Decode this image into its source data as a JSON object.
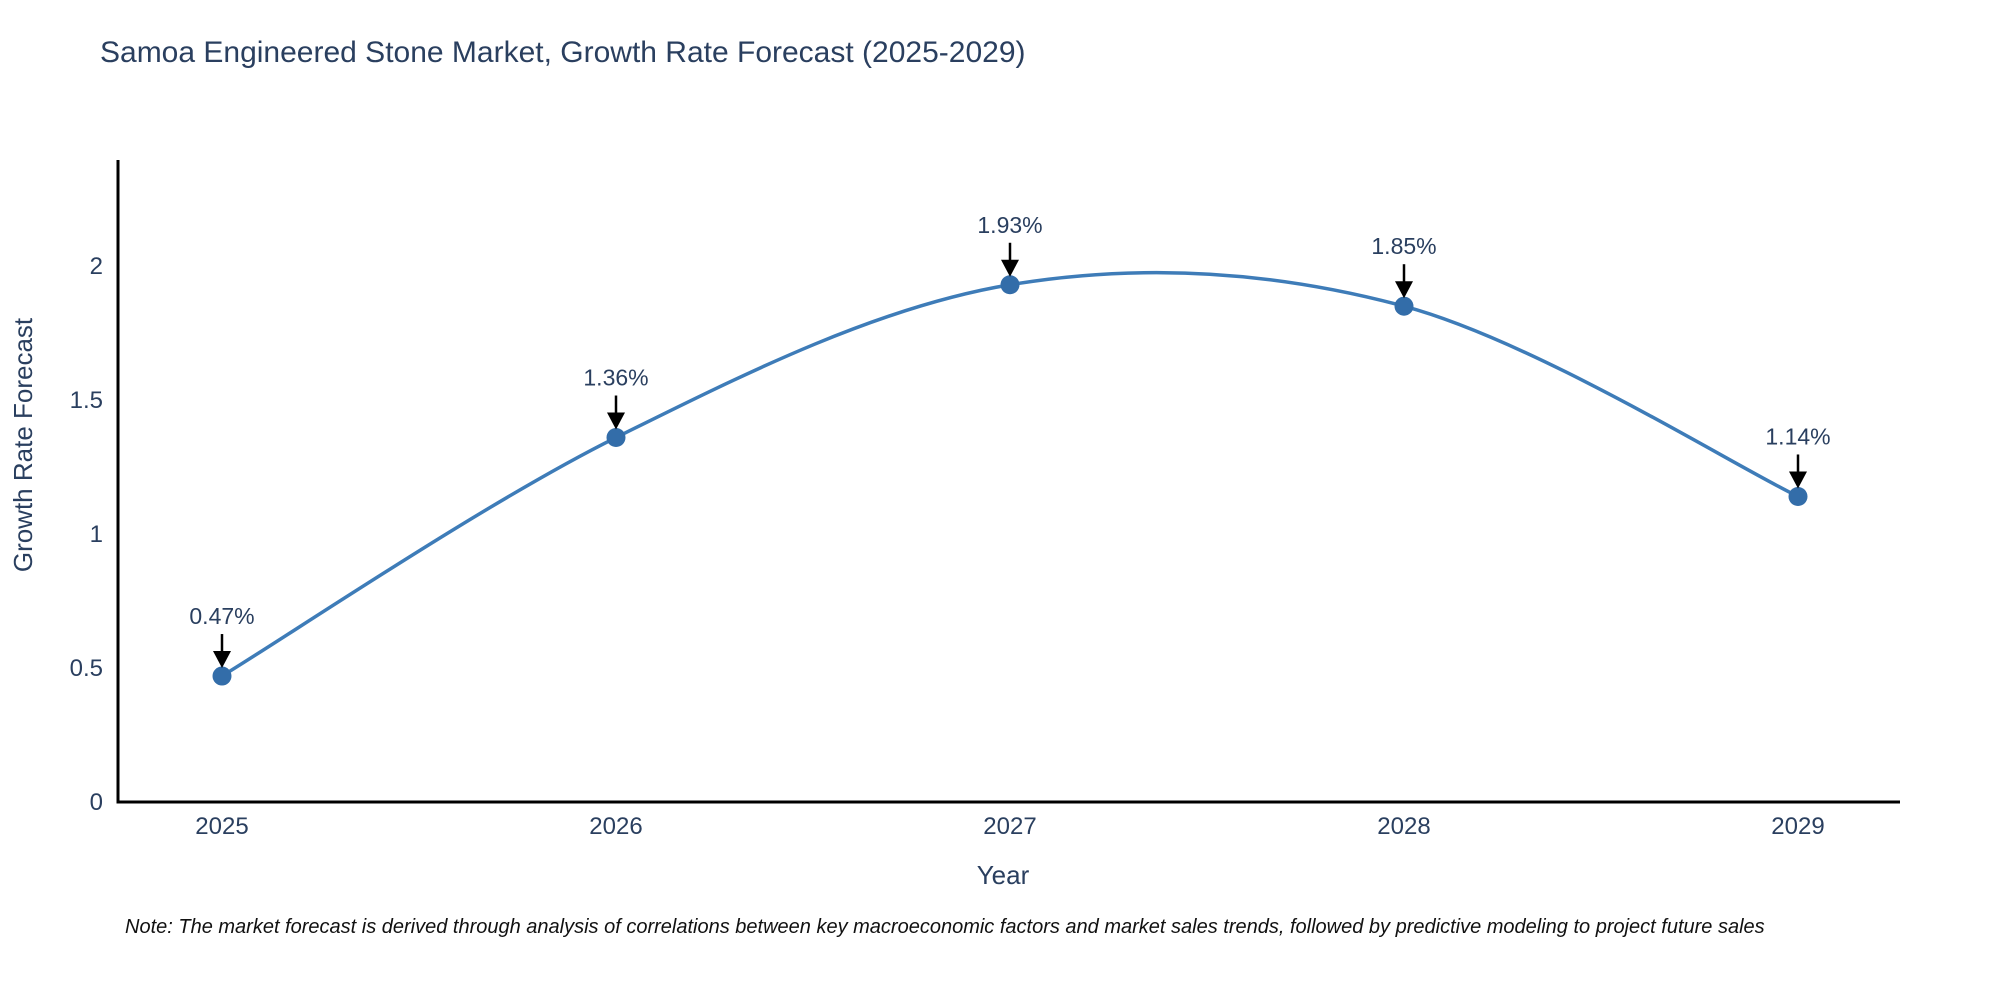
{
  "chart_data": {
    "type": "line",
    "title": "Samoa Engineered Stone Market, Growth Rate Forecast (2025-2029)",
    "xlabel": "Year",
    "ylabel": "Growth Rate Forecast",
    "x": [
      "2025",
      "2026",
      "2027",
      "2028",
      "2029"
    ],
    "series": [
      {
        "name": "Growth Rate Forecast",
        "values": [
          0.47,
          1.36,
          1.93,
          1.85,
          1.14
        ],
        "point_labels": [
          "0.47%",
          "1.36%",
          "1.93%",
          "1.85%",
          "1.14%"
        ]
      }
    ],
    "yticks": [
      "0",
      "0.5",
      "1",
      "1.5",
      "2"
    ],
    "ylim": [
      0,
      2.4
    ],
    "line_shape": "spline",
    "grid": false,
    "legend": "none",
    "colors": {
      "line": "#3e7cb8",
      "marker": "#336da9",
      "axis": "#000000",
      "text": "#2a3f5f",
      "arrow": "#000000"
    }
  },
  "note": {
    "text": "Note: The market forecast is derived through analysis of correlations between key macroeconomic factors and market sales trends, followed by predictive modeling to project future sales"
  }
}
